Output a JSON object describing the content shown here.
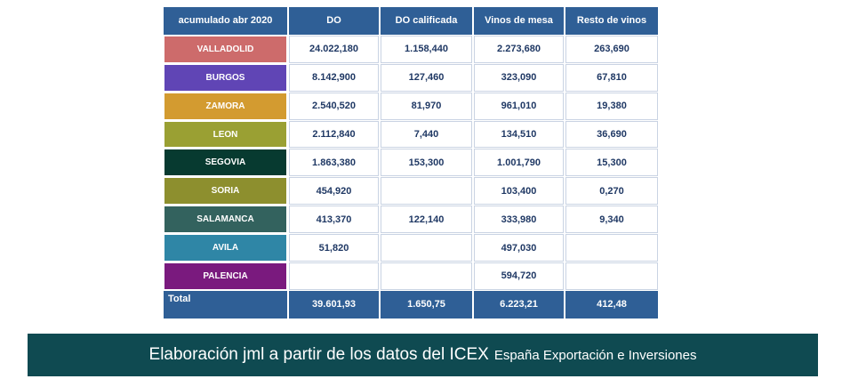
{
  "table": {
    "headers": [
      "acumulado abr 2020",
      "DO",
      "DO calificada",
      "Vinos de mesa",
      "Resto de vinos"
    ],
    "rows": [
      {
        "province": "VALLADOLID",
        "color": "#cd6b6b",
        "do": "24.022,180",
        "doc": "1.158,440",
        "mesa": "2.273,680",
        "resto": "263,690"
      },
      {
        "province": "BURGOS",
        "color": "#6045b5",
        "do": "8.142,900",
        "doc": "127,460",
        "mesa": "323,090",
        "resto": "67,810"
      },
      {
        "province": "ZAMORA",
        "color": "#d39b30",
        "do": "2.540,520",
        "doc": "81,970",
        "mesa": "961,010",
        "resto": "19,380"
      },
      {
        "province": "LEON",
        "color": "#9aa033",
        "do": "2.112,840",
        "doc": "7,440",
        "mesa": "134,510",
        "resto": "36,690"
      },
      {
        "province": "SEGOVIA",
        "color": "#073a30",
        "do": "1.863,380",
        "doc": "153,300",
        "mesa": "1.001,790",
        "resto": "15,300"
      },
      {
        "province": "SORIA",
        "color": "#8d8f2e",
        "do": "454,920",
        "doc": "",
        "mesa": "103,400",
        "resto": "0,270"
      },
      {
        "province": "SALAMANCA",
        "color": "#33625e",
        "do": "413,370",
        "doc": "122,140",
        "mesa": "333,980",
        "resto": "9,340"
      },
      {
        "province": "AVILA",
        "color": "#2f86a6",
        "do": "51,820",
        "doc": "",
        "mesa": "497,030",
        "resto": ""
      },
      {
        "province": "PALENCIA",
        "color": "#7a1a7e",
        "do": "",
        "doc": "",
        "mesa": "594,720",
        "resto": ""
      }
    ],
    "total": {
      "label": "Total",
      "do": "39.601,93",
      "doc": "1.650,75",
      "mesa": "6.223,21",
      "resto": "412,48"
    }
  },
  "footer": {
    "main": "Elaboración jml a partir de los datos del ICEX",
    "sub": "España Exportación e Inversiones"
  }
}
